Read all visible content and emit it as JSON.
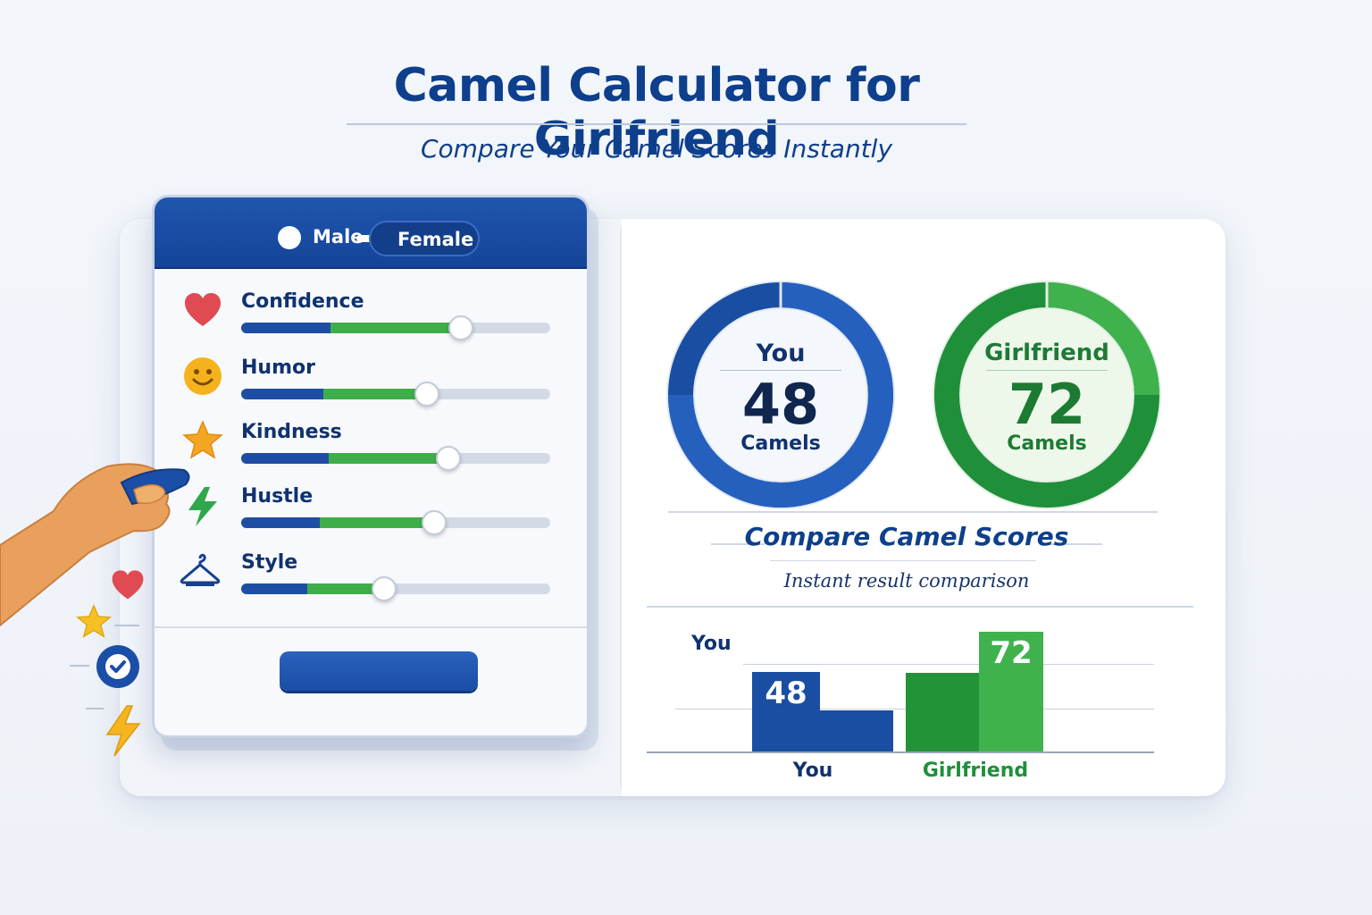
{
  "page": {
    "title": "Camel Calculator for Girlfriend",
    "subtitle": "Compare Your Camel Scores Instantly"
  },
  "form": {
    "gender": {
      "option_male": "Male",
      "option_female": "Female",
      "selected": "Female"
    },
    "sliders": [
      {
        "label": "Confidence",
        "icon": "heart-icon",
        "value": 0.71
      },
      {
        "label": "Humor",
        "icon": "smiley-icon",
        "value": 0.6
      },
      {
        "label": "Kindness",
        "icon": "star-icon",
        "value": 0.67
      },
      {
        "label": "Hustle",
        "icon": "lightning-icon",
        "value": 0.62
      },
      {
        "label": "Style",
        "icon": "hanger-icon",
        "value": 0.46
      }
    ],
    "calculate_button_label": ""
  },
  "results": {
    "you": {
      "label": "You",
      "score": "48",
      "unit": "Camels",
      "color": "#1a4ea3"
    },
    "girlfriend": {
      "label": "Girlfriend",
      "score": "72",
      "unit": "Camels",
      "color": "#1f8f3a"
    }
  },
  "compare": {
    "title": "Compare Camel Scores",
    "subtitle": "Instant result comparison",
    "chart_label": "You"
  },
  "chart_data": {
    "type": "bar",
    "title": "",
    "categories": [
      "You",
      "Girlfriend"
    ],
    "values": [
      48,
      72
    ],
    "colors": [
      "#1a4ea3",
      "#2e9e3e"
    ]
  },
  "decorations": [
    "heart-icon",
    "star-icon",
    "checkmark-icon",
    "lightning-icon",
    "hand-icon"
  ]
}
